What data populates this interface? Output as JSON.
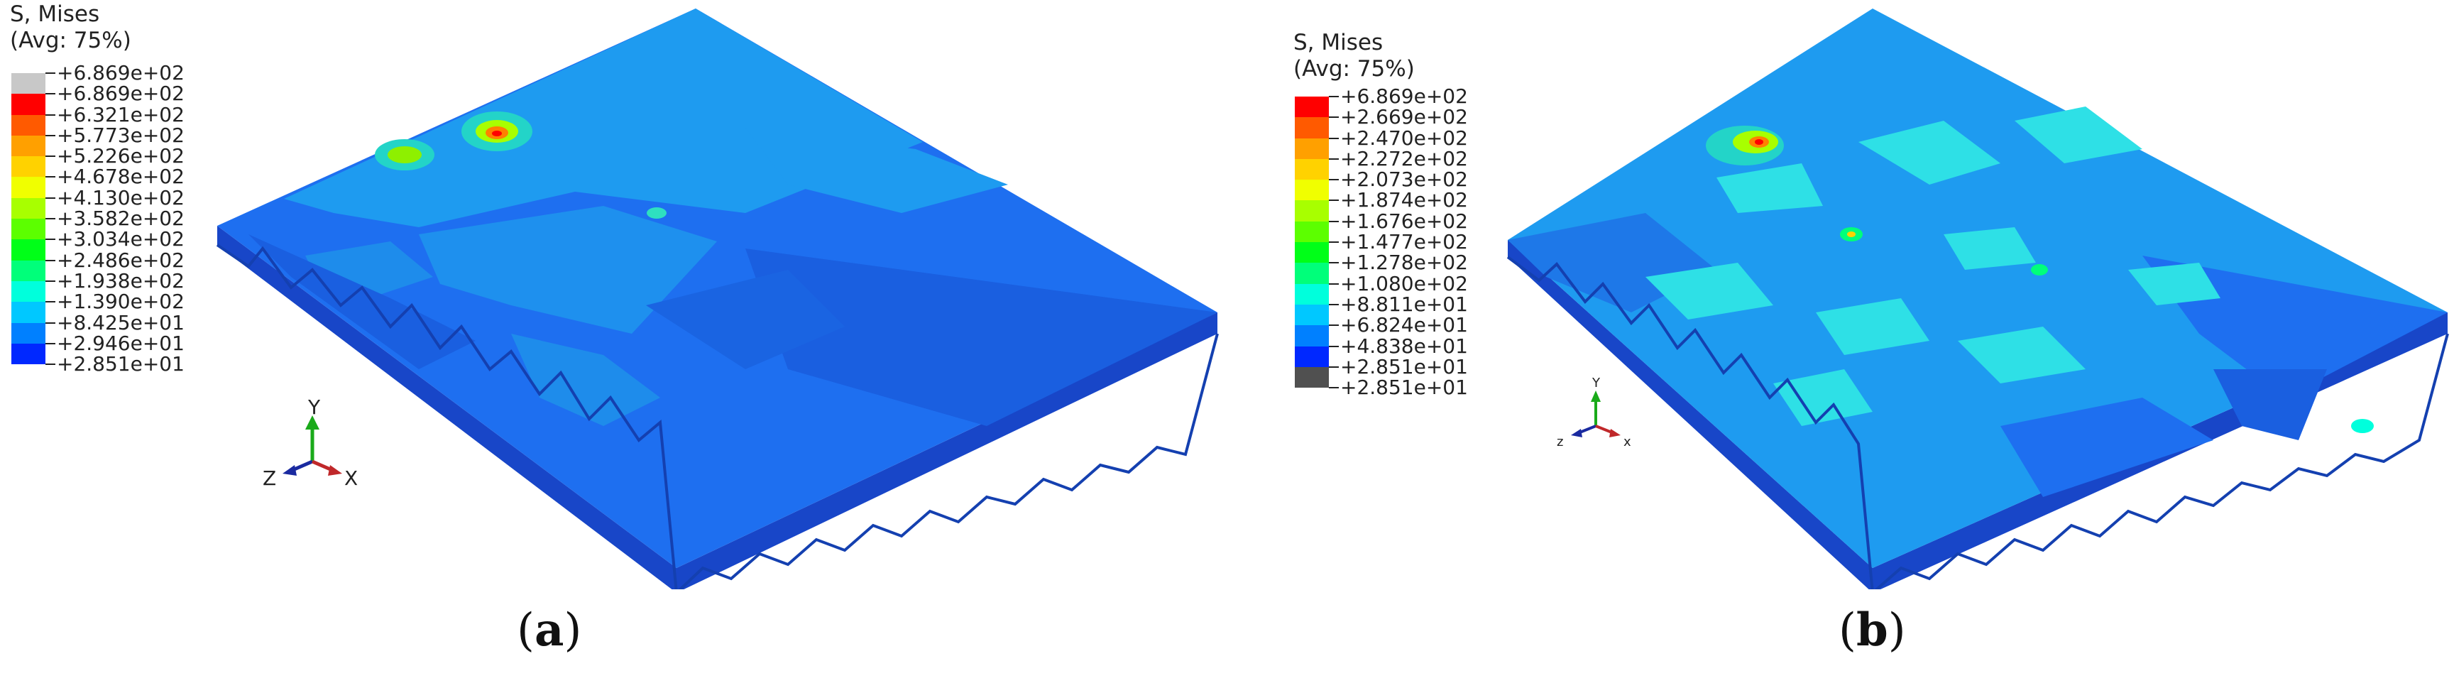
{
  "panels": [
    {
      "id": "a",
      "legend": {
        "title_line1": "S, Mises",
        "title_line2": "(Avg: 75%)",
        "labels": [
          "+6.869e+02",
          "+6.869e+02",
          "+6.321e+02",
          "+5.773e+02",
          "+5.226e+02",
          "+4.678e+02",
          "+4.130e+02",
          "+3.582e+02",
          "+3.034e+02",
          "+2.486e+02",
          "+1.938e+02",
          "+1.390e+02",
          "+8.425e+01",
          "+2.946e+01",
          "+2.851e+01"
        ],
        "colors": [
          "#c8c8c8",
          "#ff0000",
          "#ff5a00",
          "#ffa000",
          "#ffd200",
          "#f0ff00",
          "#a8ff00",
          "#5cff00",
          "#00ff18",
          "#00ff7a",
          "#00ffdc",
          "#00c8ff",
          "#0080ff",
          "#0028ff"
        ]
      },
      "triad": {
        "y": "Y",
        "z": "Z",
        "x": "X"
      },
      "caption": "a"
    },
    {
      "id": "b",
      "legend": {
        "title_line1": "S, Mises",
        "title_line2": "(Avg: 75%)",
        "labels": [
          "+6.869e+02",
          "+2.669e+02",
          "+2.470e+02",
          "+2.272e+02",
          "+2.073e+02",
          "+1.874e+02",
          "+1.676e+02",
          "+1.477e+02",
          "+1.278e+02",
          "+1.080e+02",
          "+8.811e+01",
          "+6.824e+01",
          "+4.838e+01",
          "+2.851e+01",
          "+2.851e+01"
        ],
        "colors": [
          "#ff0000",
          "#ff5a00",
          "#ffa000",
          "#ffd200",
          "#f0ff00",
          "#a8ff00",
          "#5cff00",
          "#00ff18",
          "#00ff7a",
          "#00ffdc",
          "#00c8ff",
          "#0080ff",
          "#0028ff",
          "#505050"
        ]
      },
      "triad": {
        "y": "Y",
        "z": "z",
        "x": "x"
      },
      "caption": "b"
    }
  ],
  "colors": {
    "base_blue": "#1f6fe6",
    "light_blue": "#1e9bf0",
    "cyan": "#2ee0e6"
  }
}
